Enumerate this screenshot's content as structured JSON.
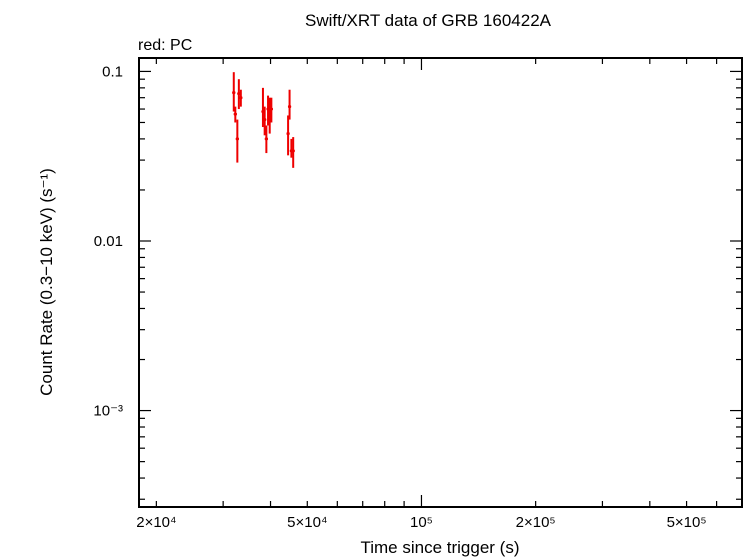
{
  "chart_data": {
    "type": "scatter",
    "title": "Swift/XRT data of GRB 160422A",
    "legend_text": "red: PC",
    "xlabel": "Time since trigger (s)",
    "ylabel": "Count Rate (0.3−10 keV) (s⁻¹)",
    "xscale": "log",
    "yscale": "log",
    "xlim": [
      18000,
      700000
    ],
    "ylim": [
      0.00027,
      0.12
    ],
    "x_ticks": [
      {
        "value": 20000,
        "label": "2×10⁴"
      },
      {
        "value": 50000,
        "label": "5×10⁴"
      },
      {
        "value": 100000,
        "label": "10⁵"
      },
      {
        "value": 200000,
        "label": "2×10⁵"
      },
      {
        "value": 500000,
        "label": "5×10⁵"
      }
    ],
    "y_ticks": [
      {
        "value": 0.1,
        "label": "0.1"
      },
      {
        "value": 0.01,
        "label": "0.01"
      },
      {
        "value": 0.001,
        "label": "10⁻³"
      }
    ],
    "grid": false,
    "legend_position": "top-left",
    "series": [
      {
        "name": "PC",
        "color": "#ee0000",
        "points": [
          {
            "x": 32000,
            "y": 0.075,
            "ylo": 0.058,
            "yhi": 0.099
          },
          {
            "x": 32300,
            "y": 0.056,
            "ylo": 0.05,
            "yhi": 0.062
          },
          {
            "x": 32700,
            "y": 0.04,
            "ylo": 0.029,
            "yhi": 0.052
          },
          {
            "x": 33000,
            "y": 0.074,
            "ylo": 0.06,
            "yhi": 0.09
          },
          {
            "x": 33400,
            "y": 0.07,
            "ylo": 0.062,
            "yhi": 0.078
          },
          {
            "x": 38200,
            "y": 0.058,
            "ylo": 0.047,
            "yhi": 0.08
          },
          {
            "x": 38600,
            "y": 0.052,
            "ylo": 0.042,
            "yhi": 0.062
          },
          {
            "x": 39000,
            "y": 0.04,
            "ylo": 0.033,
            "yhi": 0.048
          },
          {
            "x": 39400,
            "y": 0.06,
            "ylo": 0.048,
            "yhi": 0.072
          },
          {
            "x": 39800,
            "y": 0.058,
            "ylo": 0.043,
            "yhi": 0.07
          },
          {
            "x": 40200,
            "y": 0.06,
            "ylo": 0.05,
            "yhi": 0.07
          },
          {
            "x": 44500,
            "y": 0.043,
            "ylo": 0.032,
            "yhi": 0.055
          },
          {
            "x": 44900,
            "y": 0.062,
            "ylo": 0.052,
            "yhi": 0.078
          },
          {
            "x": 45400,
            "y": 0.034,
            "ylo": 0.031,
            "yhi": 0.04
          },
          {
            "x": 45900,
            "y": 0.034,
            "ylo": 0.027,
            "yhi": 0.041
          }
        ]
      }
    ]
  }
}
